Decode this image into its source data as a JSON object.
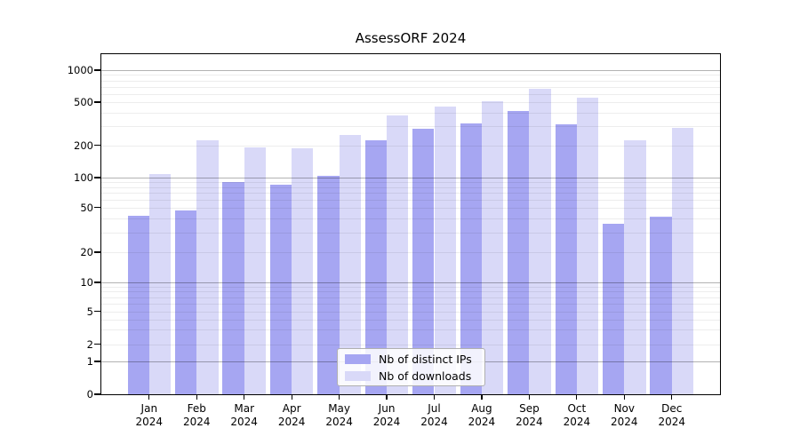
{
  "chart_data": {
    "type": "bar",
    "title": "AssessORF 2024",
    "categories": [
      "Jan",
      "Feb",
      "Mar",
      "Apr",
      "May",
      "Jun",
      "Jul",
      "Aug",
      "Sep",
      "Oct",
      "Nov",
      "Dec"
    ],
    "x_tick_second_line": "2024",
    "series": [
      {
        "name": "Nb of distinct IPs",
        "color": "#a6a6f2",
        "values": [
          42,
          47,
          90,
          84,
          104,
          221,
          282,
          320,
          412,
          310,
          36,
          41
        ]
      },
      {
        "name": "Nb of downloads",
        "color": "#d9d9f8",
        "values": [
          108,
          224,
          190,
          186,
          248,
          380,
          452,
          505,
          670,
          546,
          224,
          289
        ]
      }
    ],
    "y_ticks": [
      0,
      1,
      2,
      5,
      10,
      20,
      50,
      100,
      200,
      500,
      1000
    ],
    "y_scale": "log-like",
    "ylim": [
      0,
      1000
    ],
    "grid": "on",
    "legend_position": "inside-bottom-center",
    "colors": {
      "grid_major": "rgba(0,0,0,0.30)",
      "grid_minor": "rgba(0,0,0,0.07)",
      "frame": "#000000",
      "background": "#ffffff",
      "text": "#000000"
    }
  }
}
